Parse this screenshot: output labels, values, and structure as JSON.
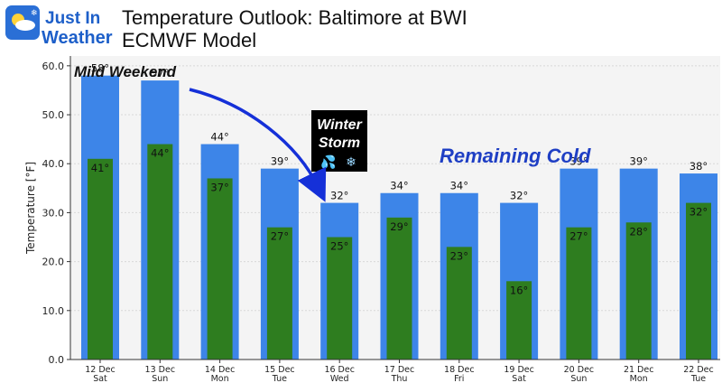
{
  "logo": {
    "line1": "Just In",
    "line2": "Weather"
  },
  "header": {
    "title": "Temperature Outlook: Baltimore at BWI",
    "subtitle": "ECMWF Model"
  },
  "annotations": {
    "mild_weekend": "Mild Weekend",
    "winter_storm_line1": "Winter",
    "winter_storm_line2": "Storm",
    "remaining_cold": "Remaining Cold"
  },
  "colors": {
    "high_bar": "#3d85e8",
    "low_bar": "#2e7d1f",
    "remaining_cold": "#1f3fc4",
    "arrow": "#1530d8",
    "plot_bg": "#f4f4f4",
    "storm_box": "#000000"
  },
  "chart_data": {
    "type": "bar",
    "ylabel": "Temperature [°F]",
    "ylim": [
      0,
      62
    ],
    "yticks": [
      "0.0",
      "10.0",
      "20.0",
      "30.0",
      "40.0",
      "50.0",
      "60.0"
    ],
    "categories": [
      {
        "date": "12 Dec",
        "day": "Sat"
      },
      {
        "date": "13 Dec",
        "day": "Sun"
      },
      {
        "date": "14 Dec",
        "day": "Mon"
      },
      {
        "date": "15 Dec",
        "day": "Tue"
      },
      {
        "date": "16 Dec",
        "day": "Wed"
      },
      {
        "date": "17 Dec",
        "day": "Thu"
      },
      {
        "date": "18 Dec",
        "day": "Fri"
      },
      {
        "date": "19 Dec",
        "day": "Sat"
      },
      {
        "date": "20 Dec",
        "day": "Sun"
      },
      {
        "date": "21 Dec",
        "day": "Mon"
      },
      {
        "date": "22 Dec",
        "day": "Tue"
      }
    ],
    "series": [
      {
        "values": [
          58,
          57,
          44,
          39,
          32,
          34,
          34,
          32,
          39,
          39,
          38
        ],
        "labels": [
          "58°",
          "57°",
          "44°",
          "39°",
          "32°",
          "34°",
          "34°",
          "32°",
          "39°",
          "39°",
          "38°"
        ]
      },
      {
        "values": [
          41,
          44,
          37,
          27,
          25,
          29,
          23,
          16,
          27,
          28,
          32
        ],
        "labels": [
          "41°",
          "44°",
          "37°",
          "27°",
          "25°",
          "29°",
          "23°",
          "16°",
          "27°",
          "28°",
          "32°"
        ]
      }
    ],
    "grid": true
  }
}
